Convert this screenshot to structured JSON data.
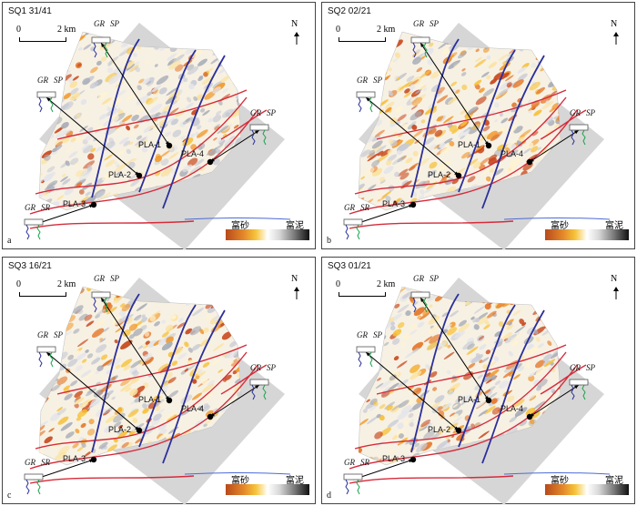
{
  "panels": [
    {
      "title": "SQ1 31/41",
      "label": "a",
      "intensity": 0.25
    },
    {
      "title": "SQ2 02/21",
      "label": "b",
      "intensity": 0.75
    },
    {
      "title": "SQ3 16/21",
      "label": "c",
      "intensity": 0.65
    },
    {
      "title": "SQ3 01/21",
      "label": "d",
      "intensity": 0.6
    }
  ],
  "scale": {
    "zero": "0",
    "distance": "2 km"
  },
  "north": "N",
  "legend": {
    "sand": "富砂",
    "mud": "富泥"
  },
  "wells": [
    "PLA-1",
    "PLA-2",
    "PLA-3",
    "PLA-4"
  ],
  "logs": {
    "gr": "GR",
    "sp": "SP",
    "sr": "SR"
  },
  "colors": {
    "fault_blue": "#2b2f9a",
    "boundary_red": "#d62b3a",
    "background_grey": "#d6d6d6",
    "sand": "#e58a2a",
    "mud": "#8a8a8a"
  }
}
